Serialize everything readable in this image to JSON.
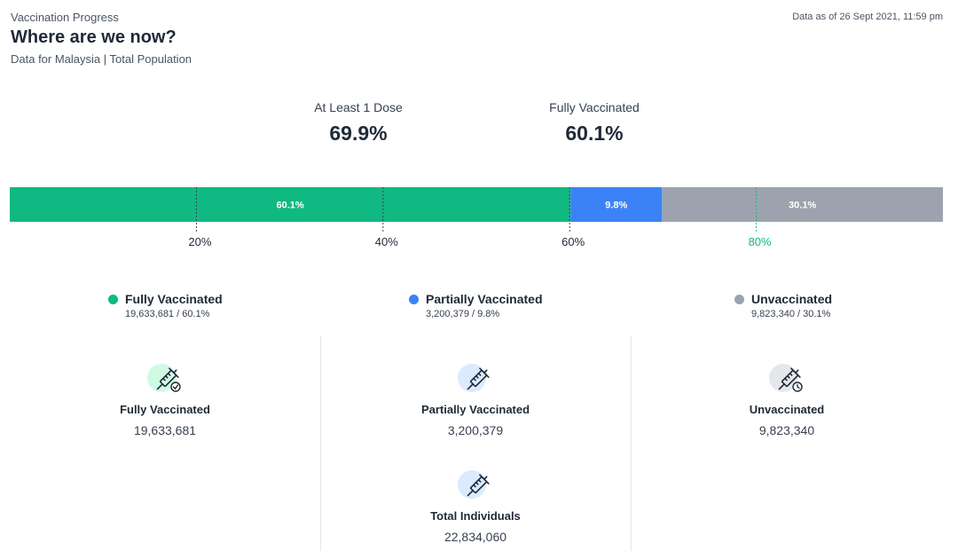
{
  "header": {
    "eyebrow": "Vaccination Progress",
    "title": "Where are we now?",
    "subtitle": "Data for Malaysia | Total Population",
    "data_as_of": "Data as of 26 Sept 2021, 11:59 pm"
  },
  "kpis": [
    {
      "label": "At Least 1 Dose",
      "value": "69.9%"
    },
    {
      "label": "Fully Vaccinated",
      "value": "60.1%"
    }
  ],
  "colors": {
    "fully": "#10b981",
    "partially": "#3b82f6",
    "unvaccinated": "#9ca3af",
    "milestone_80": "#10b981"
  },
  "chart_data": {
    "type": "bar",
    "orientation": "horizontal-stacked",
    "xlim": [
      0,
      100
    ],
    "series": [
      {
        "name": "Fully Vaccinated",
        "value": 60.1,
        "label": "60.1%"
      },
      {
        "name": "Partially Vaccinated",
        "value": 9.8,
        "label": "9.8%"
      },
      {
        "name": "Unvaccinated",
        "value": 30.1,
        "label": "30.1%"
      }
    ],
    "ticks": [
      {
        "value": 20,
        "label": "20%"
      },
      {
        "value": 40,
        "label": "40%"
      },
      {
        "value": 60,
        "label": "60%"
      },
      {
        "value": 80,
        "label": "80%",
        "highlight": true
      }
    ]
  },
  "legend": [
    {
      "name": "Fully Vaccinated",
      "detail": "19,633,681 / 60.1%"
    },
    {
      "name": "Partially Vaccinated",
      "detail": "3,200,379 / 9.8%"
    },
    {
      "name": "Unvaccinated",
      "detail": "9,823,340 / 30.1%"
    }
  ],
  "cards": [
    {
      "title": "Fully Vaccinated",
      "value": "19,633,681",
      "icon": "syringe-check-icon"
    },
    {
      "title": "Partially Vaccinated",
      "value": "3,200,379",
      "icon": "syringe-icon"
    },
    {
      "title": "Unvaccinated",
      "value": "9,823,340",
      "icon": "syringe-clock-icon"
    },
    {
      "title": "Total Individuals",
      "value": "22,834,060",
      "icon": "syringe-icon"
    }
  ]
}
